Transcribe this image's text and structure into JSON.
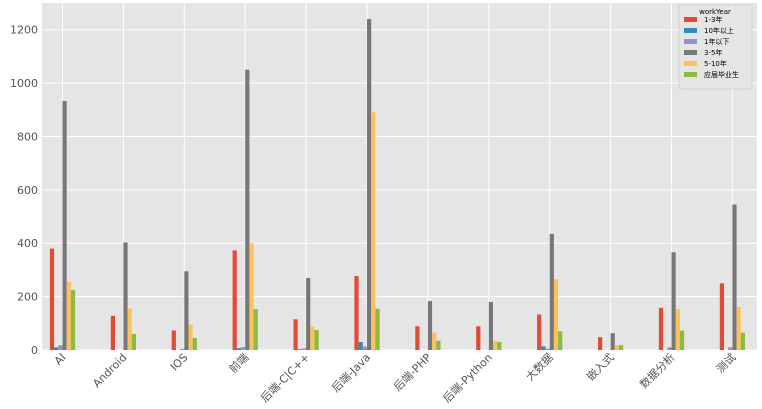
{
  "chart_data": {
    "type": "bar",
    "categories": [
      "AI",
      "Android",
      "IOS",
      "前端",
      "后端-C|C++",
      "后端-Java",
      "后端-PHP",
      "后端-Python",
      "大数据",
      "嵌入式",
      "数据分析",
      "测试"
    ],
    "series": [
      {
        "name": "1-3年",
        "color": "#E24A33",
        "values": [
          380,
          128,
          73,
          373,
          115,
          277,
          89,
          89,
          133,
          48,
          158,
          250
        ]
      },
      {
        "name": "10年以上",
        "color": "#348ABD",
        "values": [
          10,
          0,
          0,
          7,
          3,
          30,
          0,
          0,
          14,
          0,
          0,
          0
        ]
      },
      {
        "name": "1年以下",
        "color": "#988ED5",
        "values": [
          18,
          0,
          4,
          11,
          6,
          13,
          0,
          0,
          5,
          0,
          10,
          10
        ]
      },
      {
        "name": "3-5年",
        "color": "#777777",
        "values": [
          933,
          403,
          295,
          1050,
          270,
          1240,
          183,
          180,
          435,
          63,
          366,
          545
        ]
      },
      {
        "name": "5-10年",
        "color": "#FBC15E",
        "values": [
          255,
          155,
          95,
          400,
          88,
          890,
          65,
          35,
          265,
          18,
          153,
          162
        ]
      },
      {
        "name": "应届毕业生",
        "color": "#8EBA42",
        "values": [
          225,
          60,
          45,
          153,
          75,
          155,
          35,
          30,
          70,
          18,
          73,
          65
        ]
      }
    ],
    "ylim": [
      0,
      1300
    ],
    "yticks": [
      0,
      200,
      400,
      600,
      800,
      1000,
      1200
    ],
    "grid": true,
    "legend": {
      "title": "workYear",
      "placement": "top-right"
    },
    "xlabel": "",
    "ylabel": "",
    "title": ""
  },
  "colors": {
    "plot_background": "#E5E5E5",
    "grid": "#FFFFFF",
    "tick_text": "#555555"
  }
}
